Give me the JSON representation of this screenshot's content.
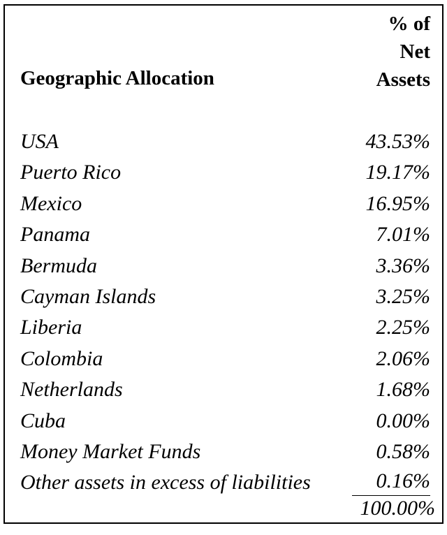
{
  "header": {
    "label": "Geographic Allocation",
    "value_line1": "% of",
    "value_line2": "Net",
    "value_line3": "Assets"
  },
  "rows": [
    {
      "name": "USA",
      "value": "43.53%"
    },
    {
      "name": "Puerto Rico",
      "value": "19.17%"
    },
    {
      "name": "Mexico",
      "value": "16.95%"
    },
    {
      "name": "Panama",
      "value": "7.01%"
    },
    {
      "name": "Bermuda",
      "value": "3.36%"
    },
    {
      "name": "Cayman Islands",
      "value": "3.25%"
    },
    {
      "name": "Liberia",
      "value": "2.25%"
    },
    {
      "name": "Colombia",
      "value": "2.06%"
    },
    {
      "name": "Netherlands",
      "value": "1.68%"
    },
    {
      "name": "Cuba",
      "value": "0.00%"
    },
    {
      "name": "Money Market Funds",
      "value": "0.58%"
    },
    {
      "name": "Other assets in excess of liabilities",
      "value": "0.16%"
    }
  ],
  "total": "100.00%"
}
